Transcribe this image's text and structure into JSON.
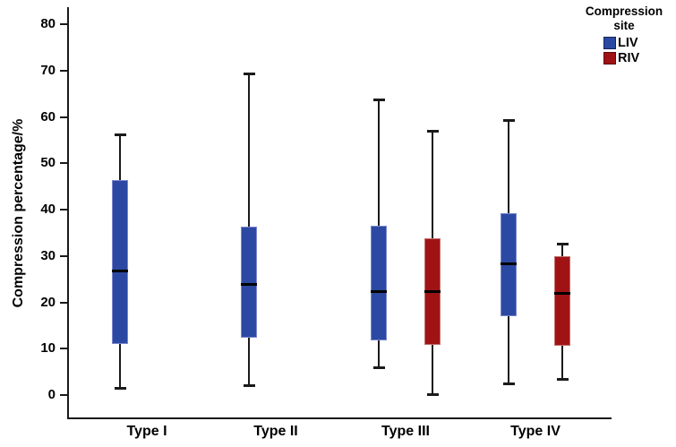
{
  "chart_data": {
    "type": "box",
    "title": "",
    "xlabel": "",
    "ylabel": "Compression percentage/%",
    "categories": [
      "Type I",
      "Type II",
      "Type III",
      "Type IV"
    ],
    "yticks": [
      0,
      10,
      20,
      30,
      40,
      50,
      60,
      70,
      80
    ],
    "ylim": [
      0,
      85
    ],
    "grid": false,
    "legend": {
      "title": "Compression site",
      "position": "top-right",
      "entries": [
        {
          "label": "LIV",
          "color": "#2B49A2",
          "border": "#16245C"
        },
        {
          "label": "RIV",
          "color": "#A01315",
          "border": "#5E0B0C"
        }
      ]
    },
    "colors": {
      "liv_fill": "#2B49A2",
      "liv_edge": "#7B86CE",
      "riv_fill": "#A01315",
      "riv_edge": "#C2706F",
      "axis": "#1a1a1a",
      "median": "#000000"
    },
    "series": [
      {
        "name": "LIV",
        "boxes": [
          {
            "category": "Type I",
            "min": 1.3,
            "q1": 11.0,
            "median": 26.8,
            "q3": 46.3,
            "max": 56.2
          },
          {
            "category": "Type II",
            "min": 2.0,
            "q1": 12.4,
            "median": 23.8,
            "q3": 36.3,
            "max": 69.3
          },
          {
            "category": "Type III",
            "min": 5.8,
            "q1": 11.8,
            "median": 22.3,
            "q3": 36.5,
            "max": 63.8
          },
          {
            "category": "Type IV",
            "min": 2.3,
            "q1": 17.0,
            "median": 28.4,
            "q3": 39.3,
            "max": 59.4
          }
        ]
      },
      {
        "name": "RIV",
        "boxes": [
          {
            "category": "Type III",
            "min": 0.0,
            "q1": 10.8,
            "median": 22.3,
            "q3": 33.9,
            "max": 57.0
          },
          {
            "category": "Type IV",
            "min": 3.3,
            "q1": 10.6,
            "median": 22.0,
            "q3": 29.9,
            "max": 32.6
          }
        ]
      }
    ]
  }
}
